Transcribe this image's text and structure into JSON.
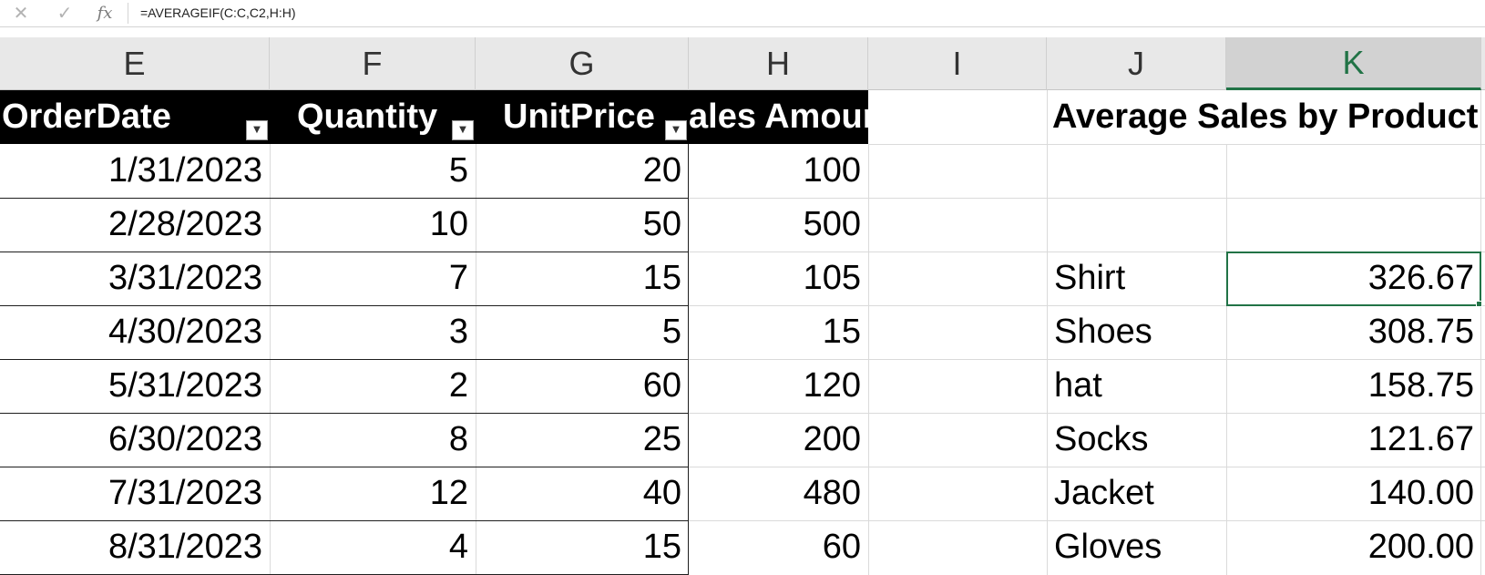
{
  "formula_bar": {
    "cancel_icon": "close-icon",
    "enter_icon": "check-icon",
    "function_icon": "fx-icon",
    "formula": "=AVERAGEIF(C:C,C2,H:H)"
  },
  "columns": [
    "E",
    "F",
    "G",
    "H",
    "I",
    "J",
    "K"
  ],
  "selected_column": "K",
  "table": {
    "headers": [
      "OrderDate",
      "Quantity",
      "UnitPrice",
      "ales Amour"
    ],
    "rows": [
      [
        "1/31/2023",
        "5",
        "20",
        "100"
      ],
      [
        "2/28/2023",
        "10",
        "50",
        "500"
      ],
      [
        "3/31/2023",
        "7",
        "15",
        "105"
      ],
      [
        "4/30/2023",
        "3",
        "5",
        "15"
      ],
      [
        "5/31/2023",
        "2",
        "60",
        "120"
      ],
      [
        "6/30/2023",
        "8",
        "25",
        "200"
      ],
      [
        "7/31/2023",
        "12",
        "40",
        "480"
      ],
      [
        "8/31/2023",
        "4",
        "15",
        "60"
      ]
    ]
  },
  "summary": {
    "title": "Average Sales by Product",
    "items": [
      {
        "product": "Shirt",
        "average": "326.67"
      },
      {
        "product": "Shoes",
        "average": "308.75"
      },
      {
        "product": "hat",
        "average": "158.75"
      },
      {
        "product": "Socks",
        "average": "121.67"
      },
      {
        "product": "Jacket",
        "average": "140.00"
      },
      {
        "product": "Gloves",
        "average": "200.00"
      }
    ]
  },
  "colors": {
    "selection": "#217346",
    "table_header_bg": "#000000",
    "table_header_text": "#ffffff"
  }
}
